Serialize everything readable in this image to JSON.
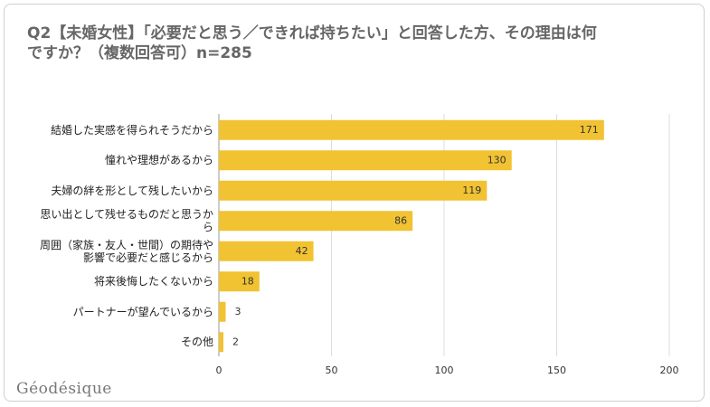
{
  "chart_data": {
    "type": "barh",
    "title": "Q2【未婚女性】「必要だと思う／できれば持ちたい」と回答した方、その理由は何ですか？（複数回答可）n=285",
    "categories": [
      "結婚した実感を得られそうだから",
      "憧れや理想があるから",
      "夫婦の絆を形として残したいから",
      "思い出として残せるものだと思うから",
      "周囲（家族・友人・世間）の期待や影響で必要だと感じるから",
      "将来後悔したくないから",
      "パートナーが望んでいるから",
      "その他"
    ],
    "values": [
      171,
      130,
      119,
      86,
      42,
      18,
      3,
      2
    ],
    "color": "#f1c232",
    "xlim": [
      0,
      200
    ],
    "xticks": [
      0,
      50,
      100,
      150,
      200
    ],
    "grid": true,
    "watermark": "Géodésique"
  }
}
